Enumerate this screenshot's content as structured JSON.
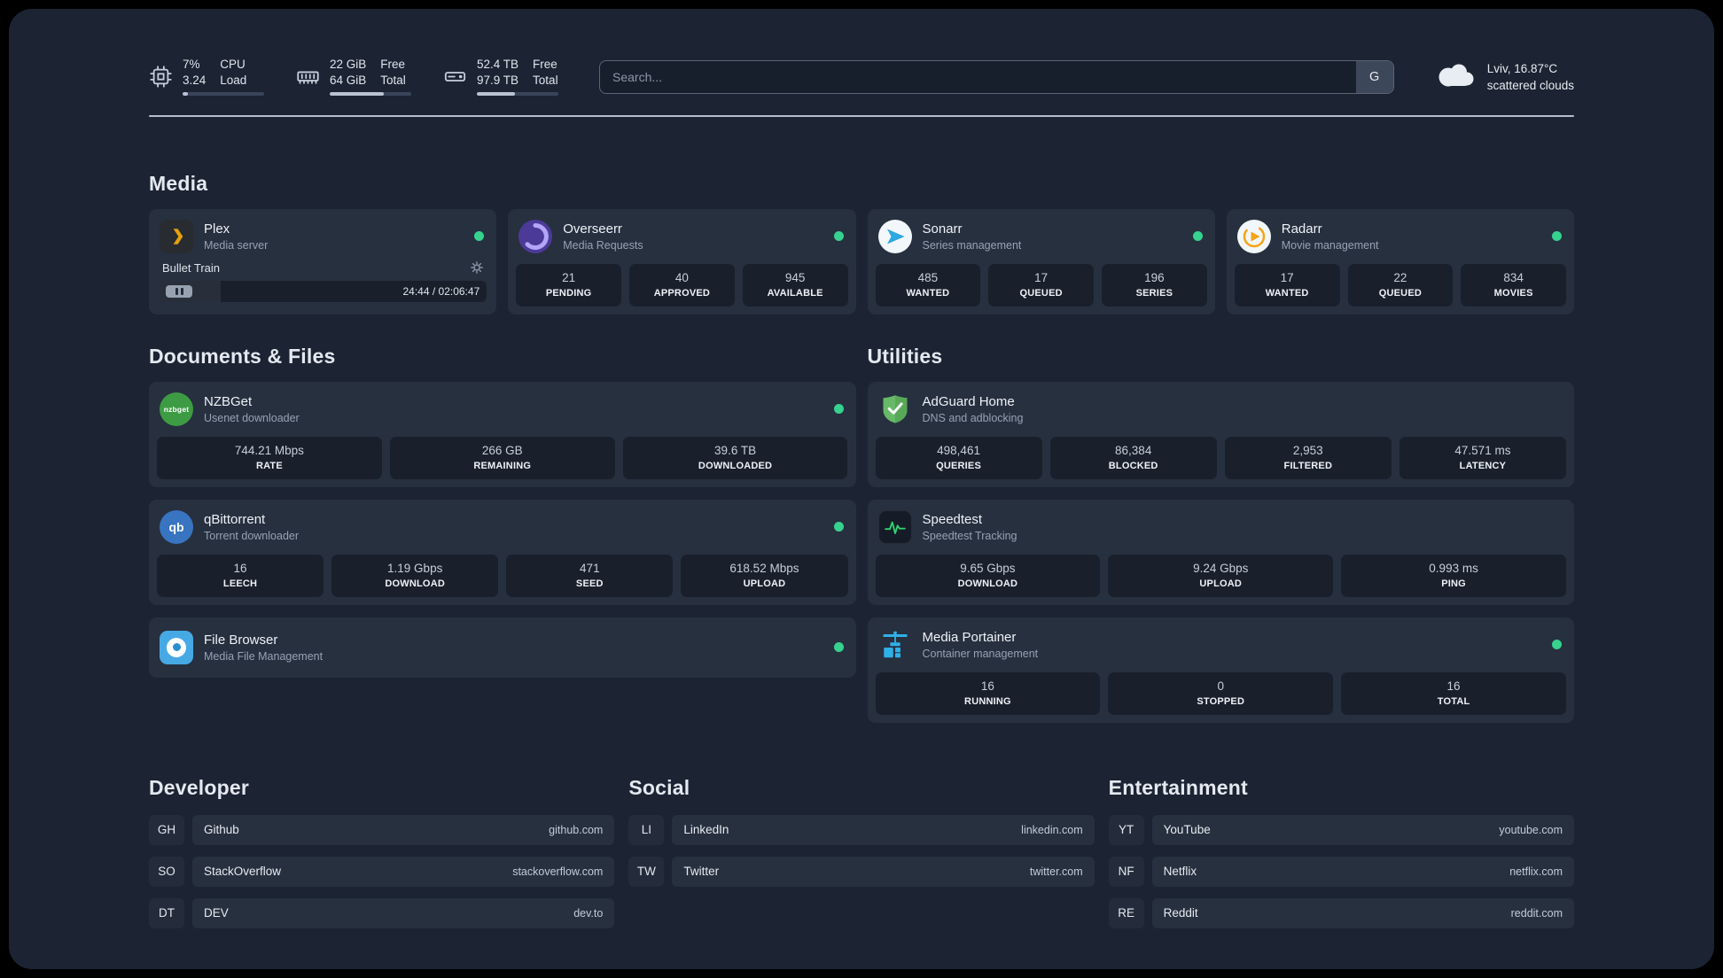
{
  "topbar": {
    "resources": [
      {
        "icon": "cpu-icon",
        "values": [
          "7%",
          "3.24"
        ],
        "labels": [
          "CPU",
          "Load"
        ],
        "progress": 7
      },
      {
        "icon": "memory-icon",
        "values": [
          "22 GiB",
          "64 GiB"
        ],
        "labels": [
          "Free",
          "Total"
        ],
        "progress": 66
      },
      {
        "icon": "disk-icon",
        "values": [
          "52.4 TB",
          "97.9 TB"
        ],
        "labels": [
          "Free",
          "Total"
        ],
        "progress": 47
      }
    ],
    "search": {
      "placeholder": "Search...",
      "provider": "G"
    },
    "weather": {
      "location": "Lviv, 16.87°C",
      "condition": "scattered clouds"
    }
  },
  "media": {
    "title": "Media",
    "services": [
      {
        "name": "Plex",
        "description": "Media server",
        "icon": "plex-icon",
        "player": {
          "track": "Bullet Train",
          "time": "24:44 / 02:06:47",
          "progress": 19
        }
      },
      {
        "name": "Overseerr",
        "description": "Media Requests",
        "icon": "overseerr-icon",
        "stats": [
          {
            "value": "21",
            "label": "PENDING"
          },
          {
            "value": "40",
            "label": "APPROVED"
          },
          {
            "value": "945",
            "label": "AVAILABLE"
          }
        ]
      },
      {
        "name": "Sonarr",
        "description": "Series management",
        "icon": "sonarr-icon",
        "stats": [
          {
            "value": "485",
            "label": "WANTED"
          },
          {
            "value": "17",
            "label": "QUEUED"
          },
          {
            "value": "196",
            "label": "SERIES"
          }
        ]
      },
      {
        "name": "Radarr",
        "description": "Movie management",
        "icon": "radarr-icon",
        "stats": [
          {
            "value": "17",
            "label": "WANTED"
          },
          {
            "value": "22",
            "label": "QUEUED"
          },
          {
            "value": "834",
            "label": "MOVIES"
          }
        ]
      }
    ]
  },
  "documents": {
    "title": "Documents & Files",
    "services": [
      {
        "name": "NZBGet",
        "description": "Usenet downloader",
        "icon": "nzbget-icon",
        "stats": [
          {
            "value": "744.21 Mbps",
            "label": "RATE"
          },
          {
            "value": "266 GB",
            "label": "REMAINING"
          },
          {
            "value": "39.6 TB",
            "label": "DOWNLOADED"
          }
        ]
      },
      {
        "name": "qBittorrent",
        "description": "Torrent downloader",
        "icon": "qbittorrent-icon",
        "stats": [
          {
            "value": "16",
            "label": "LEECH"
          },
          {
            "value": "1.19 Gbps",
            "label": "DOWNLOAD"
          },
          {
            "value": "471",
            "label": "SEED"
          },
          {
            "value": "618.52 Mbps",
            "label": "UPLOAD"
          }
        ]
      },
      {
        "name": "File Browser",
        "description": "Media File Management",
        "icon": "filebrowser-icon",
        "stats": []
      }
    ]
  },
  "utilities": {
    "title": "Utilities",
    "services": [
      {
        "name": "AdGuard Home",
        "description": "DNS and adblocking",
        "icon": "adguard-icon",
        "stats": [
          {
            "value": "498,461",
            "label": "QUERIES"
          },
          {
            "value": "86,384",
            "label": "BLOCKED"
          },
          {
            "value": "2,953",
            "label": "FILTERED"
          },
          {
            "value": "47.571 ms",
            "label": "LATENCY"
          }
        ]
      },
      {
        "name": "Speedtest",
        "description": "Speedtest Tracking",
        "icon": "speedtest-icon",
        "stats": [
          {
            "value": "9.65 Gbps",
            "label": "DOWNLOAD"
          },
          {
            "value": "9.24 Gbps",
            "label": "UPLOAD"
          },
          {
            "value": "0.993 ms",
            "label": "PING"
          }
        ]
      },
      {
        "name": "Media Portainer",
        "description": "Container management",
        "icon": "portainer-icon",
        "stats": [
          {
            "value": "16",
            "label": "RUNNING"
          },
          {
            "value": "0",
            "label": "STOPPED"
          },
          {
            "value": "16",
            "label": "TOTAL"
          }
        ]
      }
    ]
  },
  "bookmarks": [
    {
      "title": "Developer",
      "items": [
        {
          "abbr": "GH",
          "name": "Github",
          "domain": "github.com"
        },
        {
          "abbr": "SO",
          "name": "StackOverflow",
          "domain": "stackoverflow.com"
        },
        {
          "abbr": "DT",
          "name": "DEV",
          "domain": "dev.to"
        }
      ]
    },
    {
      "title": "Social",
      "items": [
        {
          "abbr": "LI",
          "name": "LinkedIn",
          "domain": "linkedin.com"
        },
        {
          "abbr": "TW",
          "name": "Twitter",
          "domain": "twitter.com"
        }
      ]
    },
    {
      "title": "Entertainment",
      "items": [
        {
          "abbr": "YT",
          "name": "YouTube",
          "domain": "youtube.com"
        },
        {
          "abbr": "NF",
          "name": "Netflix",
          "domain": "netflix.com"
        },
        {
          "abbr": "RE",
          "name": "Reddit",
          "domain": "reddit.com"
        }
      ]
    }
  ],
  "colors": {
    "background": "#1c2433",
    "card": "#27303f",
    "status_online": "#36d28f",
    "accent_plex": "#e5a00d"
  }
}
